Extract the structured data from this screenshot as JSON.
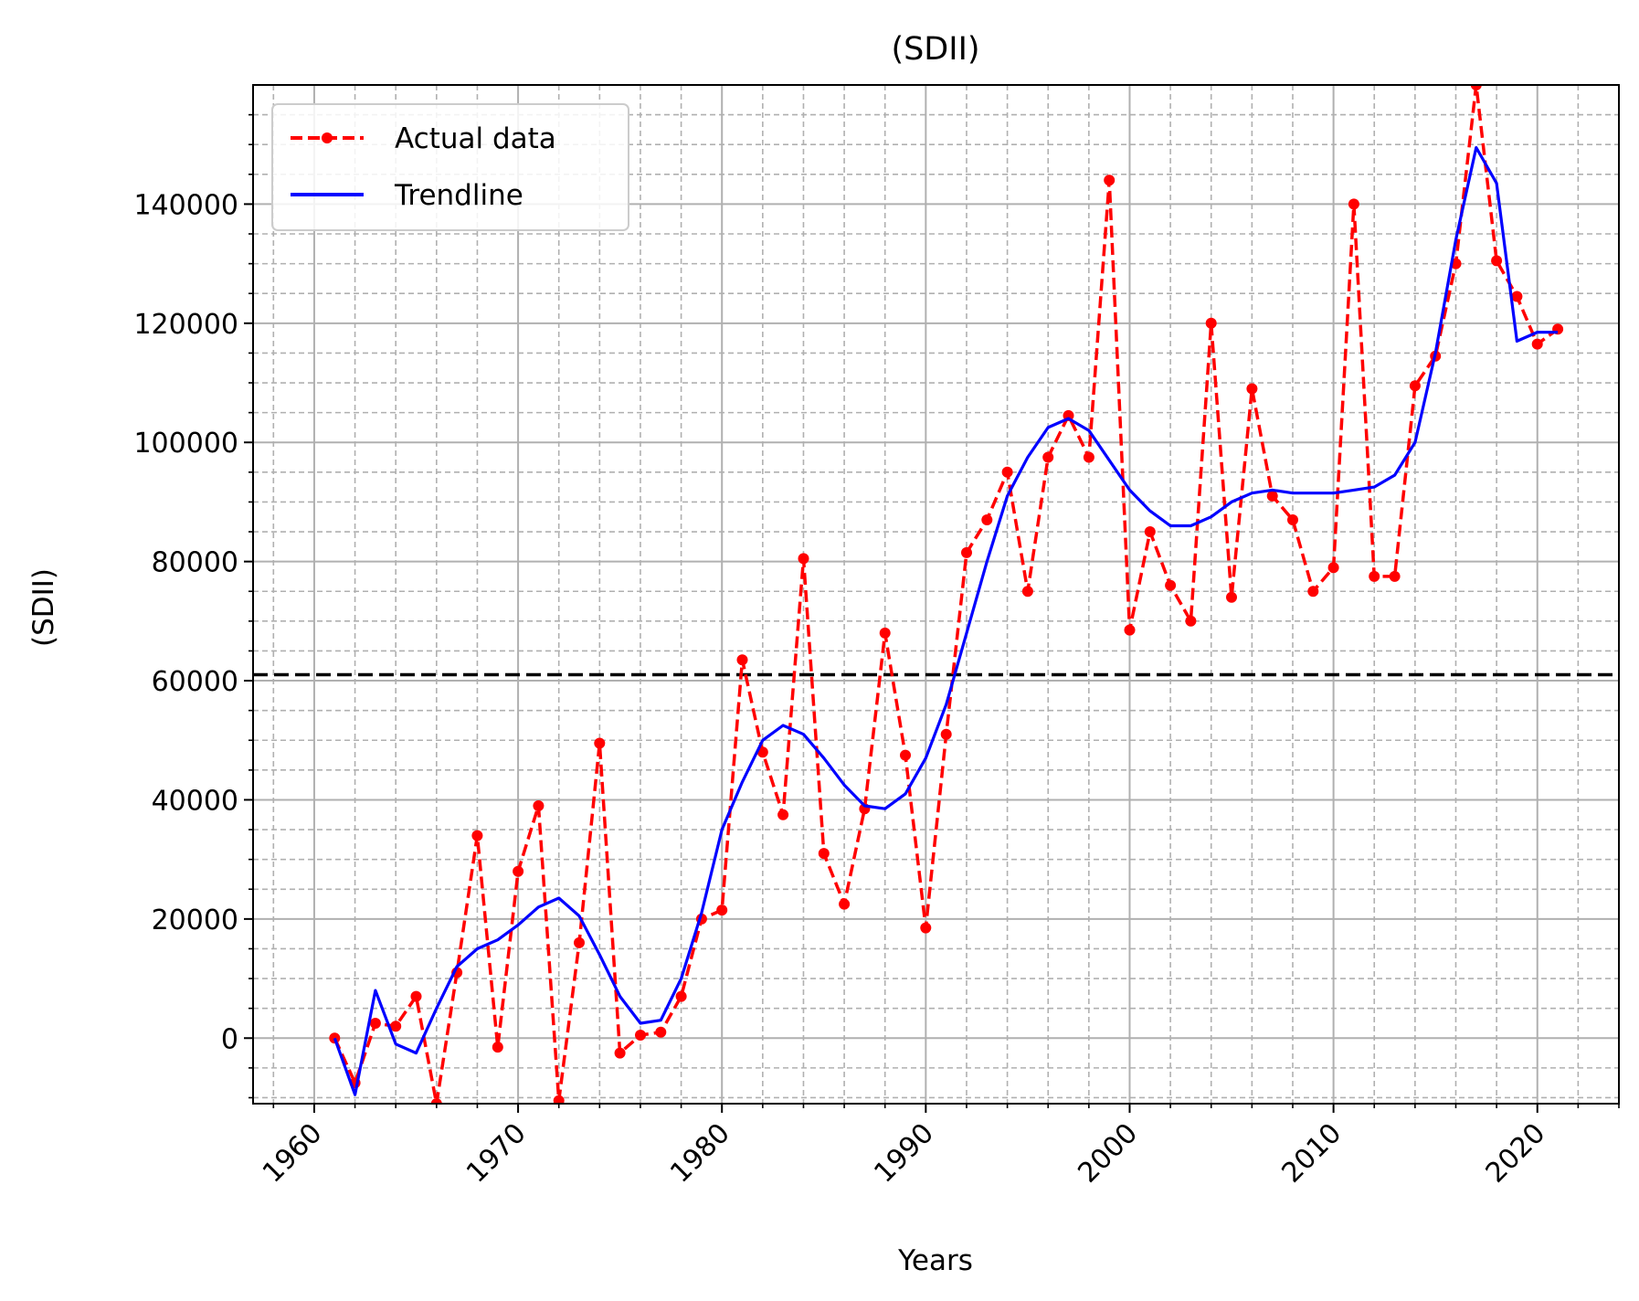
{
  "chart_data": {
    "type": "line",
    "title": "(SDII)",
    "xlabel": "Years",
    "ylabel": "(SDII)",
    "xlim": [
      1957.0,
      2024.0
    ],
    "ylim": [
      -11000,
      160000
    ],
    "x_ticks": [
      1960,
      1970,
      1980,
      1990,
      2000,
      2010,
      2020
    ],
    "x_tick_labels": [
      "1960",
      "1970",
      "1980",
      "1990",
      "2000",
      "2010",
      "2020"
    ],
    "y_ticks": [
      0,
      20000,
      40000,
      60000,
      80000,
      100000,
      120000,
      140000
    ],
    "y_tick_labels": [
      "0",
      "20000",
      "40000",
      "60000",
      "80000",
      "100000",
      "120000",
      "140000"
    ],
    "grid": true,
    "legend_position": "top-left",
    "reference_line": {
      "y": 61000,
      "style": "dashed",
      "color": "#000000"
    },
    "x": [
      1961,
      1962,
      1963,
      1964,
      1965,
      1966,
      1967,
      1968,
      1969,
      1970,
      1971,
      1972,
      1973,
      1974,
      1975,
      1976,
      1977,
      1978,
      1979,
      1980,
      1981,
      1982,
      1983,
      1984,
      1985,
      1986,
      1987,
      1988,
      1989,
      1990,
      1991,
      1992,
      1993,
      1994,
      1995,
      1996,
      1997,
      1998,
      1999,
      2000,
      2001,
      2002,
      2003,
      2004,
      2005,
      2006,
      2007,
      2008,
      2009,
      2010,
      2011,
      2012,
      2013,
      2014,
      2015,
      2016,
      2017,
      2018,
      2019,
      2020,
      2021
    ],
    "series": [
      {
        "name": "Actual data",
        "color": "#ff0000",
        "style": "dashed-with-dots",
        "values": [
          0,
          -7500,
          2500,
          2000,
          7000,
          -11000,
          11000,
          34000,
          -1500,
          28000,
          39000,
          -10500,
          16000,
          49500,
          -2500,
          500,
          1000,
          7000,
          20000,
          21500,
          63500,
          48000,
          37500,
          80500,
          31000,
          22500,
          38500,
          68000,
          47500,
          18500,
          51000,
          81500,
          87000,
          95000,
          75000,
          97500,
          104500,
          97500,
          144000,
          68500,
          85000,
          76000,
          70000,
          120000,
          74000,
          109000,
          91000,
          87000,
          75000,
          79000,
          140000,
          77500,
          77500,
          109500,
          114500,
          130000,
          160000,
          130500,
          124500,
          116500,
          119000
        ]
      },
      {
        "name": "Trendline",
        "color": "#0000ff",
        "style": "solid",
        "values": [
          0,
          -9500,
          8000,
          -1000,
          -2500,
          5000,
          12000,
          15000,
          16500,
          19000,
          22000,
          23500,
          20500,
          14000,
          7000,
          2500,
          3000,
          10000,
          21000,
          35000,
          43000,
          50000,
          52500,
          51000,
          47000,
          42500,
          39000,
          38500,
          41000,
          47000,
          56000,
          68000,
          80000,
          91000,
          97500,
          102500,
          104000,
          102000,
          97000,
          92000,
          88500,
          86000,
          86000,
          87500,
          90000,
          91500,
          92000,
          91500,
          91500,
          91500,
          92000,
          92500,
          94500,
          100000,
          115000,
          134000,
          149500,
          143500,
          117000,
          118500,
          118500
        ]
      }
    ]
  }
}
